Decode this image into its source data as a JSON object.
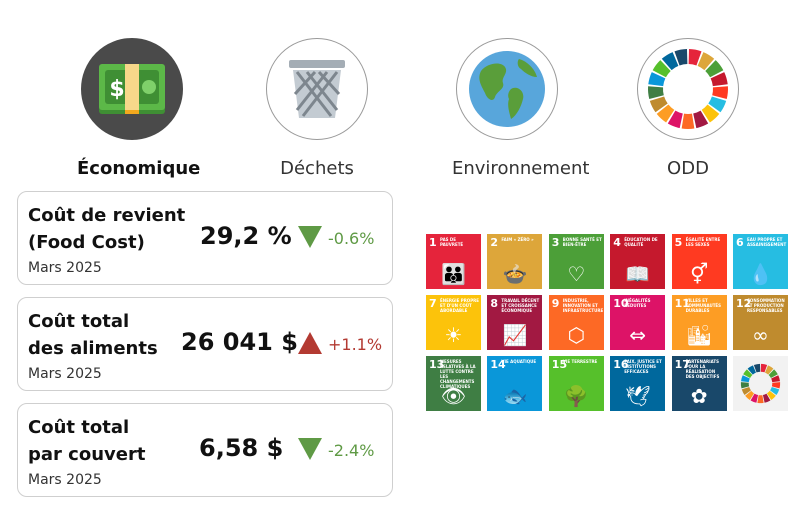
{
  "tabs": [
    {
      "label": "Économique",
      "icon": "money-icon",
      "active": true
    },
    {
      "label": "Déchets",
      "icon": "trash-can-icon",
      "active": false
    },
    {
      "label": "Environnement",
      "icon": "globe-icon",
      "active": false
    },
    {
      "label": "ODD",
      "icon": "sdg-wheel-icon",
      "active": false
    }
  ],
  "cards": [
    {
      "title_line1": "Coût de revient",
      "title_line2": "(Food Cost)",
      "value": "29,2 %",
      "direction": "down",
      "change": "-0.6%",
      "date": "Mars 2025"
    },
    {
      "title_line1": "Coût total",
      "title_line2": "des aliments",
      "value": "26 041 $",
      "direction": "up",
      "change": "+1.1%",
      "date": "Mars 2025"
    },
    {
      "title_line1": "Coût total",
      "title_line2": "par couvert",
      "value": "6,58 $",
      "direction": "down",
      "change": "-2.4%",
      "date": "Mars 2025"
    }
  ],
  "sdg": [
    {
      "num": "1",
      "text": "Pas de pauvreté",
      "color": "#e5243b",
      "glyph": "👪"
    },
    {
      "num": "2",
      "text": "Faim « zéro »",
      "color": "#dda63a",
      "glyph": "🍲"
    },
    {
      "num": "3",
      "text": "Bonne santé et bien-être",
      "color": "#4c9f38",
      "glyph": "♡"
    },
    {
      "num": "4",
      "text": "Éducation de qualité",
      "color": "#c5192d",
      "glyph": "📖"
    },
    {
      "num": "5",
      "text": "Égalité entre les sexes",
      "color": "#ff3a21",
      "glyph": "⚥"
    },
    {
      "num": "6",
      "text": "Eau propre et assainissement",
      "color": "#26bde2",
      "glyph": "💧"
    },
    {
      "num": "7",
      "text": "Énergie propre et d'un coût abordable",
      "color": "#fcc30b",
      "glyph": "☀"
    },
    {
      "num": "8",
      "text": "Travail décent et croissance économique",
      "color": "#a21942",
      "glyph": "📈"
    },
    {
      "num": "9",
      "text": "Industrie, innovation et infrastructure",
      "color": "#fd6925",
      "glyph": "⬡"
    },
    {
      "num": "10",
      "text": "Inégalités réduites",
      "color": "#dd1367",
      "glyph": "⇔"
    },
    {
      "num": "11",
      "text": "Villes et communautés durables",
      "color": "#fd9d24",
      "glyph": "🏙"
    },
    {
      "num": "12",
      "text": "Consommation et production responsables",
      "color": "#bf8b2e",
      "glyph": "∞"
    },
    {
      "num": "13",
      "text": "Mesures relatives à la lutte contre les changements climatiques",
      "color": "#3f7e44",
      "glyph": "👁"
    },
    {
      "num": "14",
      "text": "Vie aquatique",
      "color": "#0a97d9",
      "glyph": "🐟"
    },
    {
      "num": "15",
      "text": "Vie terrestre",
      "color": "#56c02b",
      "glyph": "🌳"
    },
    {
      "num": "16",
      "text": "Paix, justice et institutions efficaces",
      "color": "#00689d",
      "glyph": "🕊"
    },
    {
      "num": "17",
      "text": "Partenariats pour la réalisation des objectifs",
      "color": "#19486a",
      "glyph": "✿"
    },
    {
      "num": "",
      "text": "",
      "color": "#f2f2f2",
      "glyph": "wheel"
    }
  ]
}
